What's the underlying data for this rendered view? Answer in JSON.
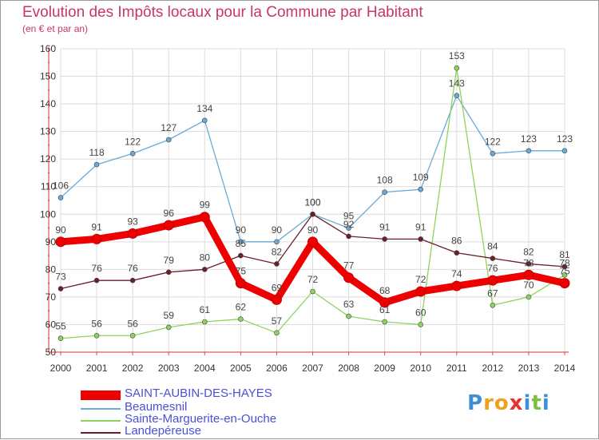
{
  "title": "Evolution des Impôts locaux pour la Commune par Habitant",
  "subtitle": "(en € et par an)",
  "logo": {
    "letters": [
      "P",
      "r",
      "o",
      "x",
      "i",
      "t",
      "i"
    ],
    "colors": [
      "#3d8fd6",
      "#f0a020",
      "#f0a020",
      "#e83030",
      "#3d8fd6",
      "#7bc043",
      "#3d8fd6"
    ]
  },
  "chart_data": {
    "type": "line",
    "x": [
      "2000",
      "2001",
      "2002",
      "2003",
      "2004",
      "2005",
      "2006",
      "2007",
      "2008",
      "2009",
      "2010",
      "2011",
      "2012",
      "2013",
      "2014"
    ],
    "ylim": [
      50,
      160
    ],
    "yticks": [
      50,
      60,
      70,
      80,
      90,
      100,
      110,
      120,
      130,
      140,
      150,
      160
    ],
    "grid": true,
    "legend_position": "bottom-left",
    "series": [
      {
        "name": "SAINT-AUBIN-DES-HAYES",
        "color": "#ee0000",
        "style": "thick",
        "values": [
          90,
          91,
          93,
          96,
          99,
          75,
          69,
          90,
          77,
          68,
          72,
          74,
          76,
          78,
          75
        ]
      },
      {
        "name": "Beaumesnil",
        "color": "#6aaad8",
        "style": "thin",
        "values": [
          106,
          118,
          122,
          127,
          134,
          90,
          90,
          100,
          95,
          108,
          109,
          143,
          122,
          123,
          123
        ]
      },
      {
        "name": "Sainte-Marguerite-en-Ouche",
        "color": "#8ed35c",
        "style": "thin",
        "values": [
          55,
          56,
          56,
          59,
          61,
          62,
          57,
          72,
          63,
          61,
          60,
          153,
          67,
          70,
          78
        ]
      },
      {
        "name": "Landepéreuse",
        "color": "#6b1f2a",
        "style": "thin",
        "values": [
          73,
          76,
          76,
          79,
          80,
          85,
          82,
          100,
          92,
          91,
          91,
          86,
          84,
          82,
          81
        ]
      }
    ],
    "labels": [
      {
        "series": 0,
        "values": [
          "90",
          "91",
          "93",
          "96",
          "99",
          "75",
          "69",
          "90",
          "77",
          "68",
          "72",
          "74",
          "76",
          "78",
          "75"
        ]
      },
      {
        "series": 1,
        "values": [
          "106",
          "118",
          "122",
          "127",
          "134",
          "90",
          "90",
          "100",
          "95",
          "108",
          "109",
          "143",
          "122",
          "123",
          "123"
        ]
      },
      {
        "series": 2,
        "values": [
          "55",
          "56",
          "56",
          "59",
          "61",
          "62",
          "57",
          "72",
          "63",
          "61",
          "60",
          "153",
          "67",
          "70",
          "78"
        ]
      },
      {
        "series": 3,
        "values": [
          "73",
          "76",
          "76",
          "79",
          "80",
          "85",
          "82",
          "100",
          "92",
          "91",
          "91",
          "86",
          "84",
          "82",
          "81"
        ]
      }
    ]
  }
}
